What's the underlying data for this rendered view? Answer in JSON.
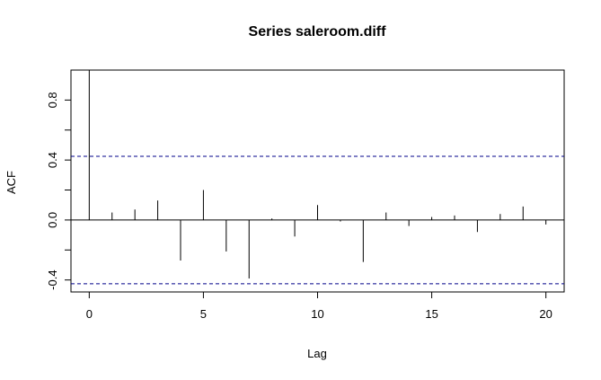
{
  "chart_data": {
    "type": "bar",
    "title": "Series  saleroom.diff",
    "xlabel": "Lag",
    "ylabel": "ACF",
    "xlim": [
      -0.8,
      20.8
    ],
    "ylim": [
      -0.48,
      1.0
    ],
    "x_ticks": [
      0,
      5,
      10,
      15,
      20
    ],
    "x_tick_labels": [
      "0",
      "5",
      "10",
      "15",
      "20"
    ],
    "y_ticks": [
      -0.4,
      0.0,
      0.4,
      0.8
    ],
    "y_tick_labels": [
      "-0.4",
      "0.0",
      "0.4",
      "0.8"
    ],
    "y_minor_ticks": [
      -0.2,
      0.2,
      0.6
    ],
    "lags": [
      0,
      1,
      2,
      3,
      4,
      5,
      6,
      7,
      8,
      9,
      10,
      11,
      12,
      13,
      14,
      15,
      16,
      17,
      18,
      19,
      20
    ],
    "values": [
      1.0,
      0.05,
      0.07,
      0.13,
      -0.27,
      0.2,
      -0.21,
      -0.39,
      0.01,
      -0.11,
      0.1,
      -0.01,
      -0.28,
      0.05,
      -0.04,
      0.02,
      0.03,
      -0.08,
      0.04,
      0.09,
      -0.03
    ],
    "confidence_bounds": [
      0.425,
      -0.425
    ],
    "confidence_color": "#00008B",
    "grid": false
  }
}
